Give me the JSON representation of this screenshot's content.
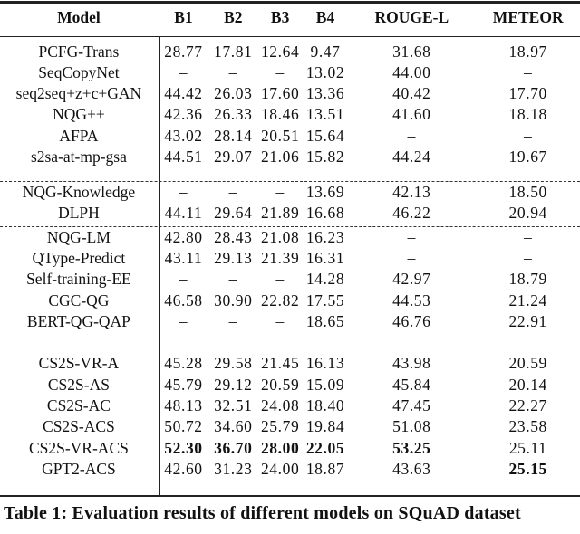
{
  "table": {
    "headers": [
      "Model",
      "B1",
      "B2",
      "B3",
      "B4",
      "ROUGE-L",
      "METEOR"
    ],
    "groups": [
      [
        {
          "model": "PCFG-Trans",
          "values": [
            "28.77",
            "17.81",
            "12.64",
            "9.47",
            "31.68",
            "18.97"
          ]
        },
        {
          "model": "SeqCopyNet",
          "values": [
            "–",
            "–",
            "–",
            "13.02",
            "44.00",
            "–"
          ]
        },
        {
          "model": "seq2seq+z+c+GAN",
          "values": [
            "44.42",
            "26.03",
            "17.60",
            "13.36",
            "40.42",
            "17.70"
          ]
        },
        {
          "model": "NQG++",
          "values": [
            "42.36",
            "26.33",
            "18.46",
            "13.51",
            "41.60",
            "18.18"
          ]
        },
        {
          "model": "AFPA",
          "values": [
            "43.02",
            "28.14",
            "20.51",
            "15.64",
            "–",
            "–"
          ]
        },
        {
          "model": "s2sa-at-mp-gsa",
          "values": [
            "44.51",
            "29.07",
            "21.06",
            "15.82",
            "44.24",
            "19.67"
          ]
        }
      ],
      [
        {
          "model": "NQG-Knowledge",
          "values": [
            "–",
            "–",
            "–",
            "13.69",
            "42.13",
            "18.50"
          ]
        },
        {
          "model": "DLPH",
          "values": [
            "44.11",
            "29.64",
            "21.89",
            "16.68",
            "46.22",
            "20.94"
          ]
        }
      ],
      [
        {
          "model": "NQG-LM",
          "values": [
            "42.80",
            "28.43",
            "21.08",
            "16.23",
            "–",
            "–"
          ]
        },
        {
          "model": "QType-Predict",
          "values": [
            "43.11",
            "29.13",
            "21.39",
            "16.31",
            "–",
            "–"
          ]
        },
        {
          "model": "Self-training-EE",
          "values": [
            "–",
            "–",
            "–",
            "14.28",
            "42.97",
            "18.79"
          ]
        },
        {
          "model": "CGC-QG",
          "values": [
            "46.58",
            "30.90",
            "22.82",
            "17.55",
            "44.53",
            "21.24"
          ]
        },
        {
          "model": "BERT-QG-QAP",
          "values": [
            "–",
            "–",
            "–",
            "18.65",
            "46.76",
            "22.91"
          ]
        }
      ],
      [
        {
          "model": "CS2S-VR-A",
          "values": [
            "45.28",
            "29.58",
            "21.45",
            "16.13",
            "43.98",
            "20.59"
          ]
        },
        {
          "model": "CS2S-AS",
          "values": [
            "45.79",
            "29.12",
            "20.59",
            "15.09",
            "45.84",
            "20.14"
          ]
        },
        {
          "model": "CS2S-AC",
          "values": [
            "48.13",
            "32.51",
            "24.08",
            "18.40",
            "47.45",
            "22.27"
          ]
        },
        {
          "model": "CS2S-ACS",
          "values": [
            "50.72",
            "34.60",
            "25.79",
            "19.84",
            "51.08",
            "23.58"
          ]
        },
        {
          "model": "CS2S-VR-ACS",
          "values": [
            "52.30",
            "36.70",
            "28.00",
            "22.05",
            "53.25",
            "25.11"
          ],
          "bold": [
            true,
            true,
            true,
            true,
            true,
            false
          ]
        },
        {
          "model": "GPT2-ACS",
          "values": [
            "42.60",
            "31.23",
            "24.00",
            "18.87",
            "43.63",
            "25.15"
          ],
          "bold": [
            false,
            false,
            false,
            false,
            false,
            true
          ]
        }
      ]
    ]
  },
  "caption": "Table 1: Evaluation results of different models on SQuAD dataset"
}
